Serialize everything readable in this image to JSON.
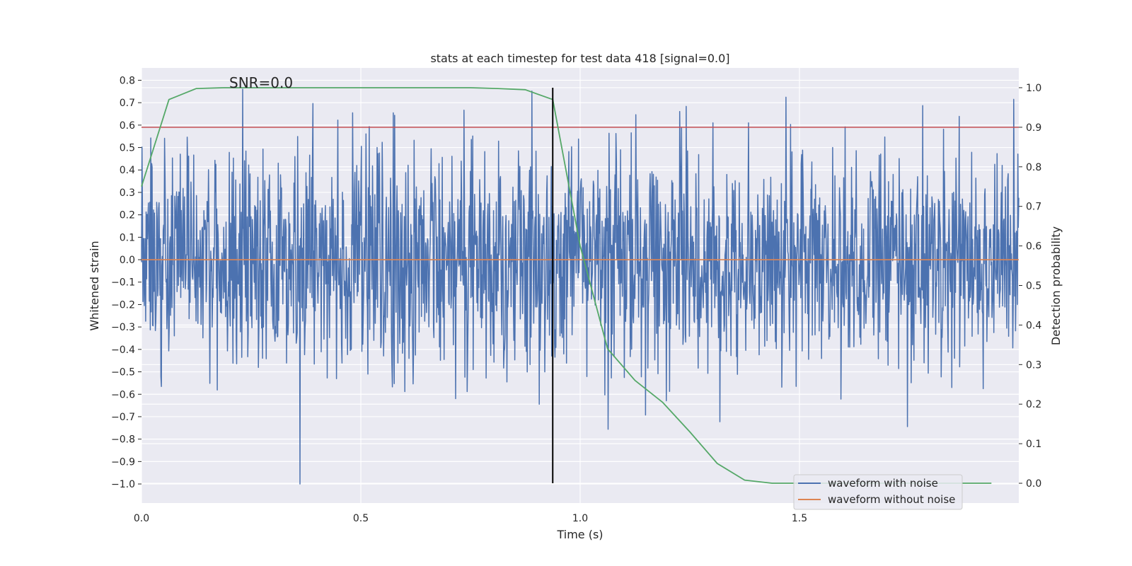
{
  "chart_data": {
    "type": "line",
    "title": "stats at each timestep for test data 418 [signal=0.0]",
    "xlabel": "Time (s)",
    "ylabel": "Whitened strain",
    "y2label": "Detection probability",
    "annotation": "SNR=0.0",
    "xlim": [
      0.0,
      2.0
    ],
    "ylim": [
      -1.085,
      0.855
    ],
    "y2lim": [
      -0.05,
      1.05
    ],
    "xticks": [
      0.0,
      0.5,
      1.0,
      1.5
    ],
    "xtick_labels": [
      "0.0",
      "0.5",
      "1.0",
      "1.5"
    ],
    "yticks": [
      -1.0,
      -0.9,
      -0.8,
      -0.7,
      -0.6,
      -0.5,
      -0.4,
      -0.3,
      -0.2,
      -0.1,
      0.0,
      0.1,
      0.2,
      0.3,
      0.4,
      0.5,
      0.6,
      0.7,
      0.8
    ],
    "ytick_labels": [
      "−1.0",
      "−0.9",
      "−0.8",
      "−0.7",
      "−0.6",
      "−0.5",
      "−0.4",
      "−0.3",
      "−0.2",
      "−0.1",
      "0.0",
      "0.1",
      "0.2",
      "0.3",
      "0.4",
      "0.5",
      "0.6",
      "0.7",
      "0.8"
    ],
    "y2ticks": [
      0.0,
      0.1,
      0.2,
      0.3,
      0.4,
      0.5,
      0.6,
      0.7,
      0.8,
      0.9,
      1.0
    ],
    "y2tick_labels": [
      "0.0",
      "0.1",
      "0.2",
      "0.3",
      "0.4",
      "0.5",
      "0.6",
      "0.7",
      "0.8",
      "0.9",
      "1.0"
    ],
    "grid": true,
    "legend_position": "lower-right",
    "colors": {
      "noisy": "#4c72b0",
      "clean": "#dd8452",
      "probability": "#55a868",
      "threshold": "#c44e52",
      "marker": "#000000",
      "background": "#eaeaf2"
    },
    "series": [
      {
        "name": "waveform with noise",
        "axis": "left",
        "style": "noise",
        "x_range": [
          0.0,
          2.0
        ],
        "min": -1.0,
        "max": 0.76,
        "sigma": 0.25
      },
      {
        "name": "waveform without noise",
        "axis": "left",
        "x": [
          0.0,
          2.0
        ],
        "y": [
          0.0,
          0.0
        ]
      },
      {
        "axis": "right",
        "x": [
          0.0,
          0.0625,
          0.125,
          0.1875,
          0.25,
          0.3125,
          0.375,
          0.4375,
          0.5,
          0.5625,
          0.625,
          0.6875,
          0.75,
          0.8125,
          0.875,
          0.9375,
          1.0,
          1.0625,
          1.125,
          1.1875,
          1.25,
          1.3125,
          1.375,
          1.4375,
          1.5,
          1.5625,
          1.625,
          1.6875,
          1.75,
          1.8125,
          1.875,
          1.9375
        ],
        "y": [
          0.75,
          0.97,
          0.998,
          1.0,
          1.0,
          1.0,
          1.0,
          1.0,
          1.0,
          1.0,
          1.0,
          1.0,
          1.0,
          0.998,
          0.995,
          0.97,
          0.6,
          0.34,
          0.26,
          0.205,
          0.13,
          0.05,
          0.008,
          0.0,
          0.0,
          0.0,
          0.0,
          0.0,
          0.0,
          0.0,
          0.0,
          0.0
        ]
      }
    ],
    "threshold_line": {
      "axis": "right",
      "y": 0.9
    },
    "marker_line": {
      "x": 0.9375,
      "y2_range": [
        0.0,
        1.0
      ]
    }
  }
}
